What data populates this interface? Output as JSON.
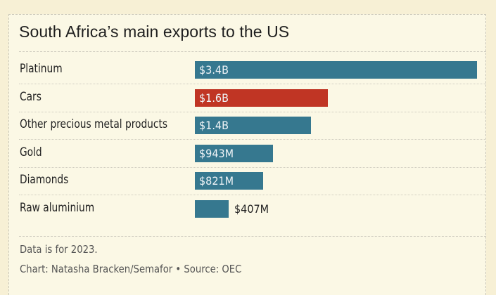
{
  "chart_data": {
    "type": "bar",
    "orientation": "horizontal",
    "title": "South Africa’s main exports to the US",
    "unit": "USD",
    "categories": [
      "Platinum",
      "Cars",
      "Other precious metal products",
      "Gold",
      "Diamonds",
      "Raw aluminium"
    ],
    "values": [
      3.4,
      1.6,
      1.4,
      0.943,
      0.821,
      0.407
    ],
    "value_units": "billion USD",
    "data_labels": [
      "$3.4B",
      "$1.6B",
      "$1.4B",
      "$943M",
      "$821M",
      "$407M"
    ],
    "highlight_category": "Cars",
    "xlim": [
      0,
      3.4
    ],
    "grid": false,
    "legend": "none",
    "colors": {
      "default": "#36788f",
      "highlight": "#c03524"
    },
    "notes": [
      "Data is for 2023."
    ],
    "credit": "Chart: Natasha Bracken/Semafor • Source: OEC"
  }
}
